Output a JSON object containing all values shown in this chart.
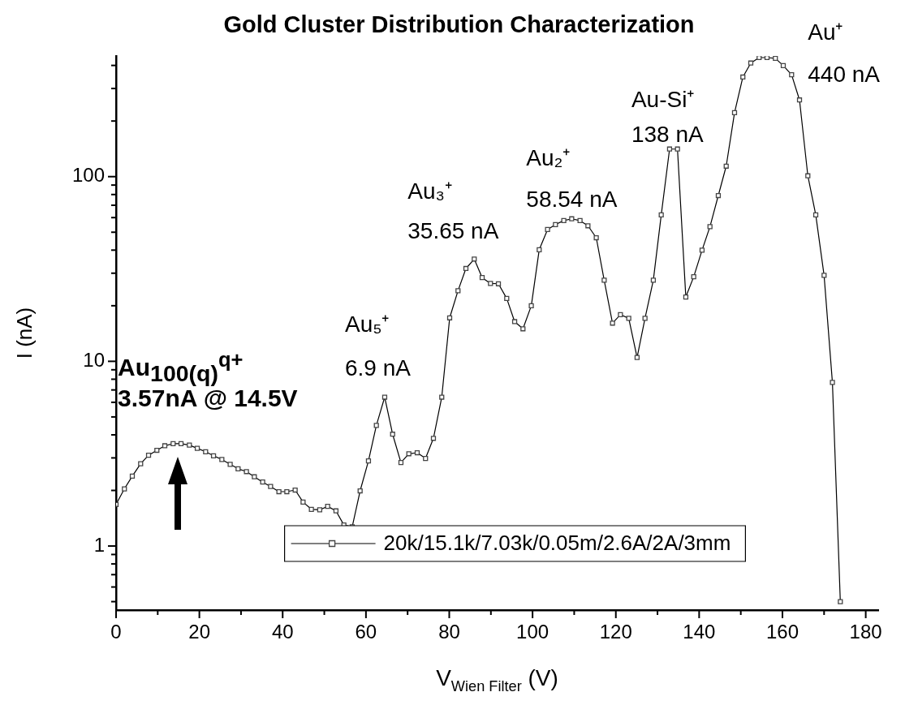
{
  "chart_data": {
    "type": "line",
    "title": "Gold Cluster Distribution Characterization",
    "xlabel": "V$_{Wien Filter}$ (V)",
    "ylabel": "I (nA)",
    "x": [
      0.0,
      2.0,
      3.9,
      5.9,
      7.8,
      9.8,
      11.7,
      13.7,
      15.6,
      17.6,
      19.5,
      21.5,
      23.4,
      25.4,
      27.4,
      29.3,
      31.3,
      33.2,
      35.2,
      37.1,
      39.1,
      41.0,
      43.0,
      44.9,
      46.9,
      48.9,
      50.8,
      52.8,
      54.7,
      56.7,
      58.6,
      60.6,
      62.5,
      64.5,
      66.4,
      68.4,
      70.3,
      72.3,
      74.3,
      76.2,
      78.2,
      80.1,
      82.1,
      84.0,
      86.0,
      87.9,
      89.9,
      91.8,
      93.8,
      95.7,
      97.7,
      99.7,
      101.6,
      103.6,
      105.5,
      107.5,
      109.4,
      111.4,
      113.3,
      115.3,
      117.2,
      119.2,
      121.1,
      123.1,
      125.1,
      127.0,
      129.0,
      130.9,
      132.9,
      134.8,
      136.8,
      138.7,
      140.7,
      142.6,
      144.6,
      146.5,
      148.5,
      150.5,
      152.4,
      154.4,
      156.3,
      158.3,
      160.2,
      162.2,
      164.1,
      166.1,
      168.0,
      170.0,
      172.0,
      173.9
    ],
    "series": [
      {
        "name": "20k/15.1k/7.03k/0.05m/2.6A/2A/3mm",
        "color": "#000000",
        "values": [
          1.68,
          2.04,
          2.39,
          2.79,
          3.1,
          3.3,
          3.49,
          3.58,
          3.58,
          3.52,
          3.38,
          3.24,
          3.08,
          2.94,
          2.77,
          2.62,
          2.53,
          2.37,
          2.22,
          2.1,
          1.97,
          1.97,
          2.01,
          1.73,
          1.58,
          1.57,
          1.64,
          1.55,
          1.3,
          1.27,
          1.99,
          2.89,
          4.5,
          6.4,
          4.03,
          2.83,
          3.16,
          3.2,
          2.98,
          3.83,
          6.4,
          17.2,
          24.1,
          31.8,
          35.8,
          28.4,
          26.4,
          26.3,
          21.9,
          16.4,
          15.0,
          20.0,
          40.2,
          51.7,
          55,
          57.8,
          59.1,
          57.8,
          54.2,
          46.7,
          27.5,
          16.1,
          17.9,
          17.1,
          10.5,
          17.1,
          27.5,
          62.1,
          141,
          141,
          22.3,
          28.7,
          40,
          53.6,
          79,
          114,
          222,
          346,
          412,
          441,
          441,
          437,
          399,
          356,
          260,
          101,
          62.1,
          29.2,
          7.69,
          0.5
        ]
      }
    ],
    "xlim": [
      0,
      183
    ],
    "xticks": [
      0,
      {
        "value": 10,
        "label": null
      },
      20,
      {
        "value": 30,
        "label": null
      },
      40,
      {
        "value": 50,
        "label": null
      },
      60,
      {
        "value": 70,
        "label": null
      },
      80,
      {
        "value": 90,
        "label": null
      },
      100,
      {
        "value": 110,
        "label": null
      },
      120,
      {
        "value": 130,
        "label": null
      },
      140,
      {
        "value": 150,
        "label": null
      },
      160,
      {
        "value": 170,
        "label": null
      },
      180
    ],
    "ylim": [
      0.45,
      450
    ],
    "log": true,
    "yticks": [
      {
        "value": 0.5,
        "label": null
      },
      {
        "value": 0.6,
        "label": null
      },
      {
        "value": 0.7,
        "label": null
      },
      {
        "value": 0.8,
        "label": null
      },
      {
        "value": 0.9,
        "label": null
      },
      1,
      {
        "value": 2,
        "label": null
      },
      {
        "value": 3,
        "label": null
      },
      {
        "value": 4,
        "label": null
      },
      {
        "value": 5,
        "label": null
      },
      {
        "value": 6,
        "label": null
      },
      {
        "value": 7,
        "label": null
      },
      {
        "value": 8,
        "label": null
      },
      {
        "value": 9,
        "label": null
      },
      10,
      {
        "value": 20,
        "label": null
      },
      {
        "value": 30,
        "label": null
      },
      {
        "value": 40,
        "label": null
      },
      {
        "value": 50,
        "label": null
      },
      {
        "value": 60,
        "label": null
      },
      {
        "value": 70,
        "label": null
      },
      {
        "value": 80,
        "label": null
      },
      {
        "value": 90,
        "label": null
      },
      100,
      {
        "value": 200,
        "label": null
      },
      {
        "value": 300,
        "label": null
      },
      {
        "value": 400,
        "label": null
      }
    ],
    "annotations": [
      {
        "text": "Au$_{100(q)}$$^{q+}$\n3.57nA @ 14.5V",
        "x": 15.6,
        "y": 3.58
      },
      {
        "text": "Au₅⁺\n6.9 nA",
        "x": 64.5,
        "y": 6.4
      },
      {
        "text": "Au₃⁺\n35.65 nA",
        "x": 86.0,
        "y": 35.8
      },
      {
        "text": "Au₂⁺\n58.54 nA",
        "x": 109.4,
        "y": 59.1
      },
      {
        "text": "Au-Si⁺\n138 nA",
        "x": 132.9,
        "y": 141
      },
      {
        "text": "Au⁺\n440 nA",
        "x": 154.4,
        "y": 441
      }
    ],
    "grid": false,
    "legend": "bottom",
    "marker": "square",
    "line_style": "solid"
  }
}
